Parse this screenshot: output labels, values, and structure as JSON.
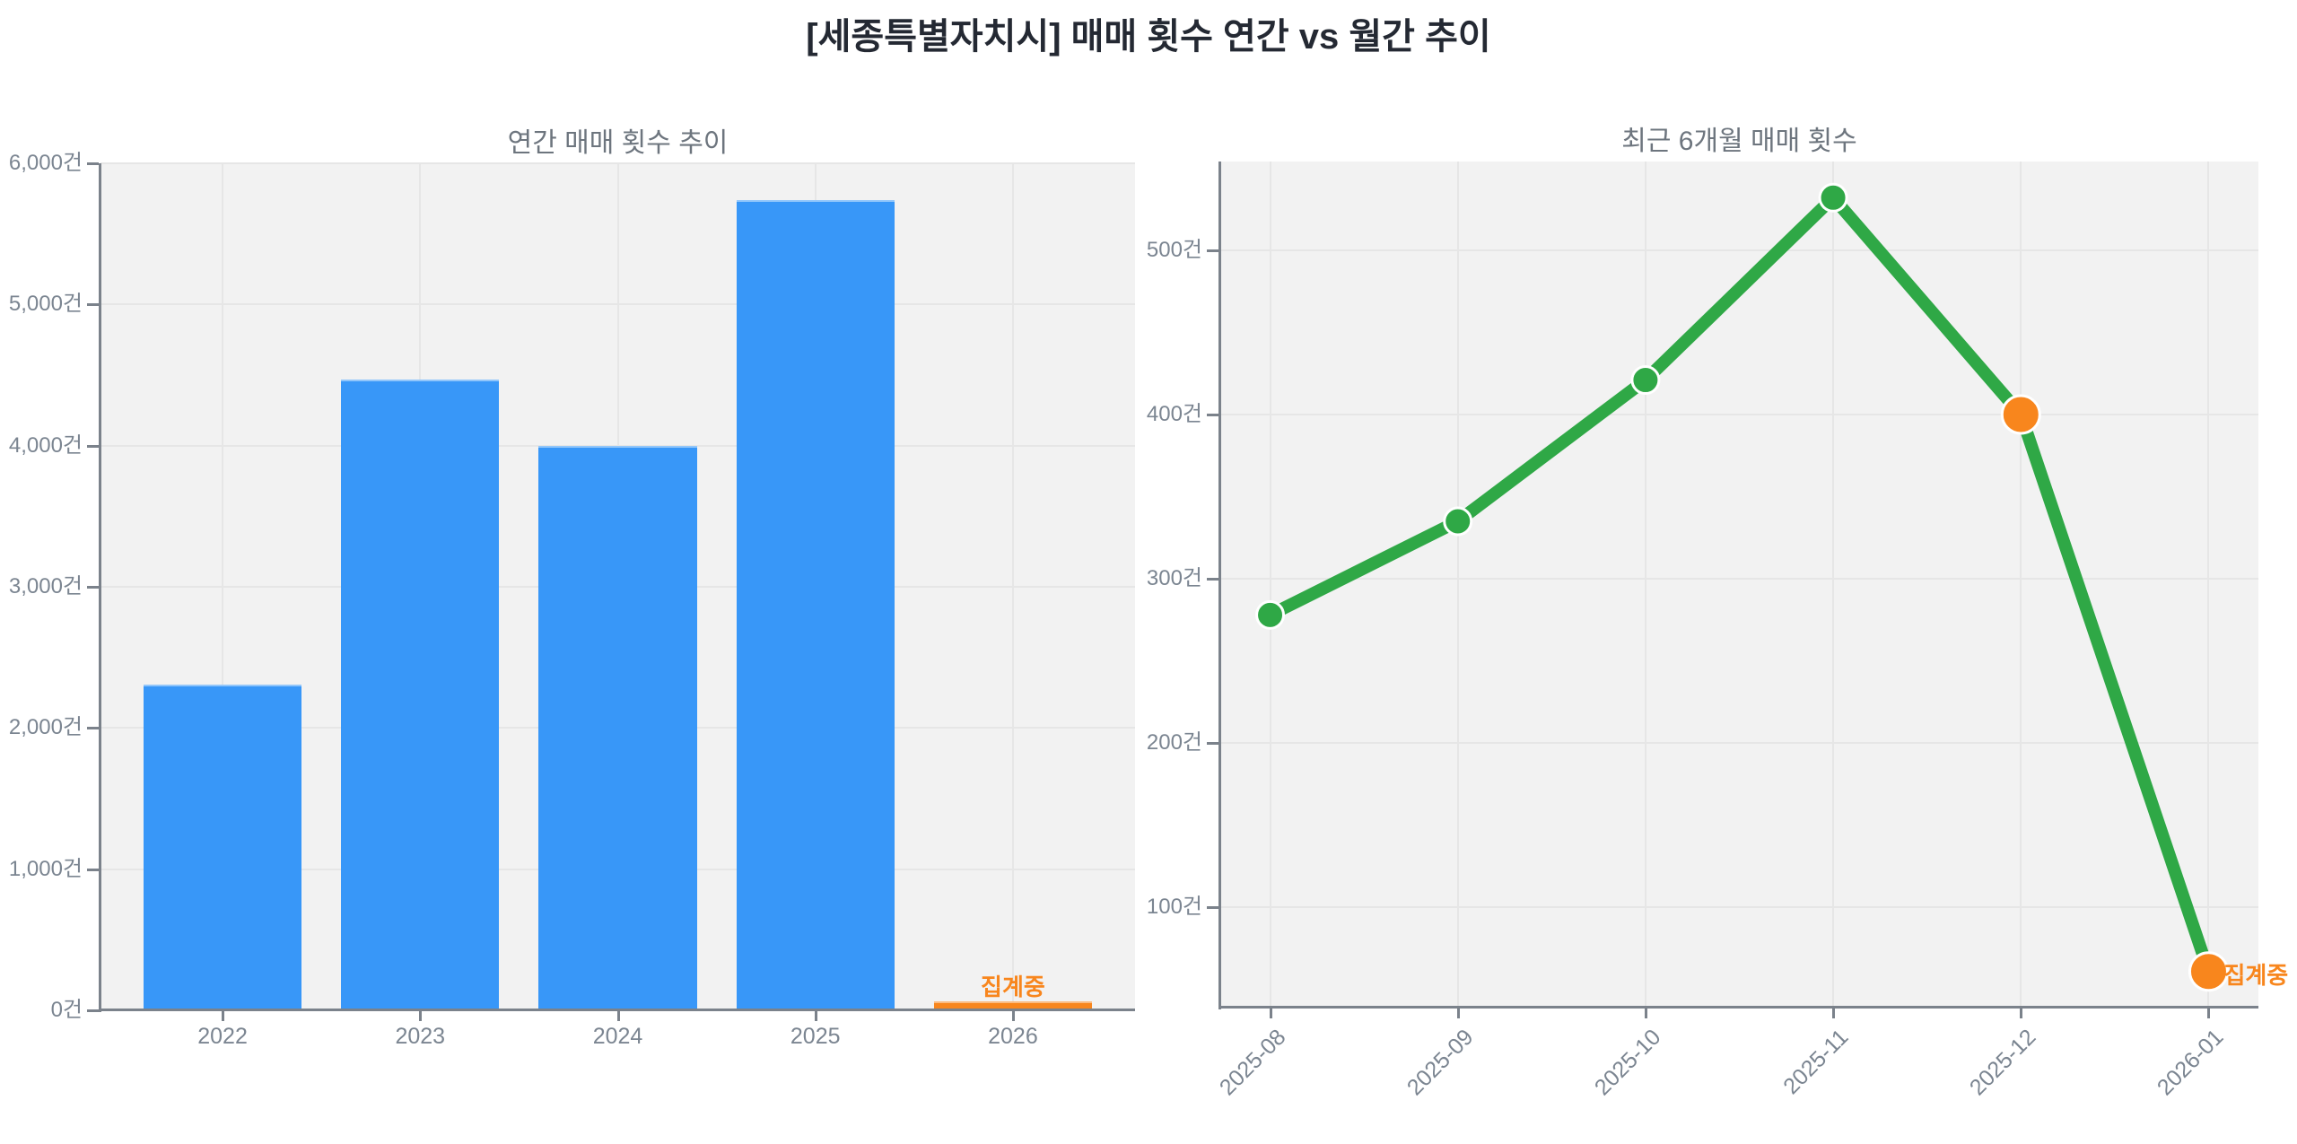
{
  "page_title": "[세종특별자치시] 매매 횟수 연간 vs 월간 추이",
  "unit_suffix": "건",
  "colors": {
    "bar_blue": "#3897f8",
    "accent_orange": "#f8861d",
    "line_green": "#2fa846",
    "plot_background": "#f2f2f2",
    "grid": "#e6e6e6",
    "axis": "#7b828b",
    "tick_text": "#7b8591",
    "chart_title_text": "#6d757e",
    "main_title_text": "#242933"
  },
  "chart_data": [
    {
      "type": "bar",
      "title": "연간 매매 횟수 추이",
      "categories": [
        "2022",
        "2023",
        "2024",
        "2025",
        "2026"
      ],
      "values": [
        2310,
        4470,
        4000,
        5740,
        61
      ],
      "bar_colors": [
        "#3897f8",
        "#3897f8",
        "#3897f8",
        "#3897f8",
        "#f8861d"
      ],
      "unit": "건",
      "yticks": [
        0,
        1000,
        2000,
        3000,
        4000,
        5000,
        6000
      ],
      "ylim": [
        0,
        6000
      ],
      "grid": true,
      "legend": "none",
      "annotations": [
        {
          "text": "집계중",
          "category": "2026",
          "position": "above-bar",
          "color": "#f8861d"
        }
      ]
    },
    {
      "type": "line",
      "title": "최근 6개월 매매 횟수",
      "x": [
        "2025-08",
        "2025-09",
        "2025-10",
        "2025-11",
        "2025-12",
        "2026-01"
      ],
      "values": [
        278,
        335,
        421,
        532,
        400,
        61
      ],
      "line_color": "#2fa846",
      "marker_colors": [
        "#2fa846",
        "#2fa846",
        "#2fa846",
        "#2fa846",
        "#f8861d",
        "#f8861d"
      ],
      "unit": "건",
      "yticks": [
        100,
        200,
        300,
        400,
        500
      ],
      "ylim": [
        39,
        554
      ],
      "grid": true,
      "legend": "none",
      "xtick_rotation": 45,
      "annotations": [
        {
          "text": "집계중",
          "x": "2026-01",
          "position": "right-of-point",
          "color": "#f8861d"
        }
      ]
    }
  ]
}
